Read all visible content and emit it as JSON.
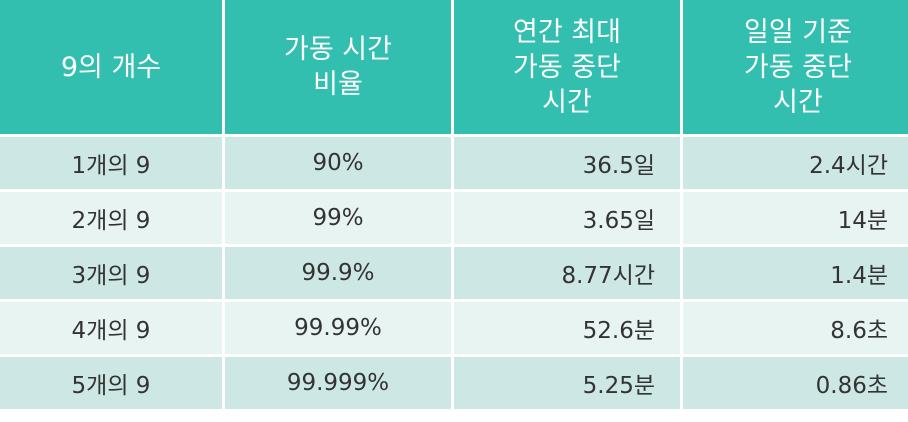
{
  "table": {
    "headers": [
      [
        "9의 개수"
      ],
      [
        "가동 시간",
        "비율"
      ],
      [
        "연간 최대",
        "가동 중단",
        "시간"
      ],
      [
        "일일 기준",
        "가동 중단",
        "시간"
      ]
    ],
    "rows": [
      [
        "1개의 9",
        "90%",
        "36.5일",
        "2.4시간"
      ],
      [
        "2개의 9",
        "99%",
        "3.65일",
        "14분"
      ],
      [
        "3개의 9",
        "99.9%",
        "8.77시간",
        "1.4분"
      ],
      [
        "4개의 9",
        "99.99%",
        "52.6분",
        "8.6초"
      ],
      [
        "5개의 9",
        "99.999%",
        "5.25분",
        "0.86초"
      ]
    ]
  },
  "colors": {
    "header_bg": "#33bfb0",
    "row_dark": "#cde8e4",
    "row_light": "#e8f4f2"
  }
}
